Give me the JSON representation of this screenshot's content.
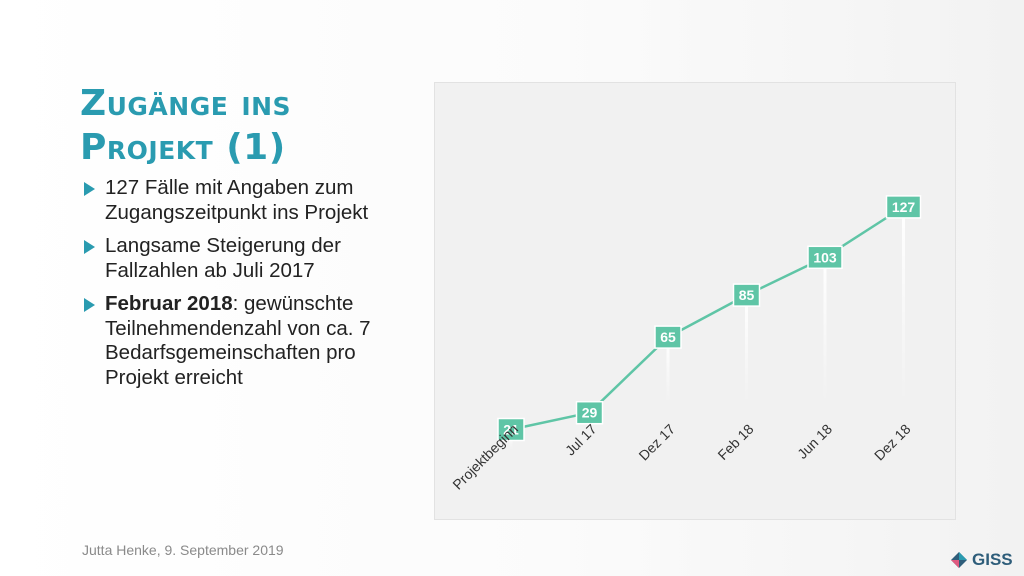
{
  "slide": {
    "title_lines": [
      "Zugänge ins",
      "Projekt (1)"
    ],
    "bullets": [
      {
        "strong": "",
        "text": "127 Fälle mit Angaben zum Zugangszeitpunkt ins Projekt"
      },
      {
        "strong": "",
        "text": "Langsame Steigerung der Fallzahlen ab Juli 2017"
      },
      {
        "strong": "Februar 2018",
        "text": ": gewünschte Teilnehmendenzahl von ca. 7 Bedarfsgemeinschaften pro Projekt erreicht"
      }
    ],
    "footer": "Jutta Henke, 9. September 2019",
    "logo": "GISS"
  },
  "colors": {
    "accent": "#2a9bb0",
    "line": "#5fc5a6",
    "label_bg": "#5fc5a6",
    "logo_blue": "#2e5d7a",
    "logo_teal": "#2a9bb0",
    "logo_pink": "#e05a80"
  },
  "chart_data": {
    "type": "line",
    "categories": [
      "Projektbeginn",
      "Jul 17",
      "Dez 17",
      "Feb 18",
      "Jun 18",
      "Dez 18"
    ],
    "values": [
      21,
      29,
      65,
      85,
      103,
      127
    ],
    "data_labels": [
      "21",
      "29",
      "65",
      "85",
      "103",
      "127"
    ],
    "xlabel": "",
    "ylabel": "",
    "ylim": [
      0,
      140
    ],
    "grid": false,
    "legend": "none",
    "drop_lines": true
  }
}
